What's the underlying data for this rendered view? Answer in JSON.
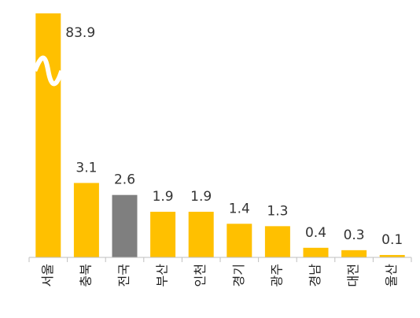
{
  "chart_data": {
    "type": "bar",
    "title": "",
    "xlabel": "",
    "ylabel": "",
    "categories": [
      "서울",
      "충북",
      "전국",
      "부산",
      "인천",
      "경기",
      "광주",
      "경남",
      "대전",
      "울산"
    ],
    "values": [
      83.9,
      3.1,
      2.6,
      1.9,
      1.9,
      1.4,
      1.3,
      0.4,
      0.3,
      0.1
    ],
    "value_labels": [
      "83.9",
      "3.1",
      "2.6",
      "1.9",
      "1.9",
      "1.4",
      "1.3",
      "0.4",
      "0.3",
      "0.1"
    ],
    "axis_break": {
      "category": "서울"
    },
    "ylim": [
      0,
      3.9
    ],
    "grid": false,
    "colors": {
      "default": "#FFC000",
      "highlight": "#7F7F7F",
      "highlight_category": "전국"
    }
  }
}
